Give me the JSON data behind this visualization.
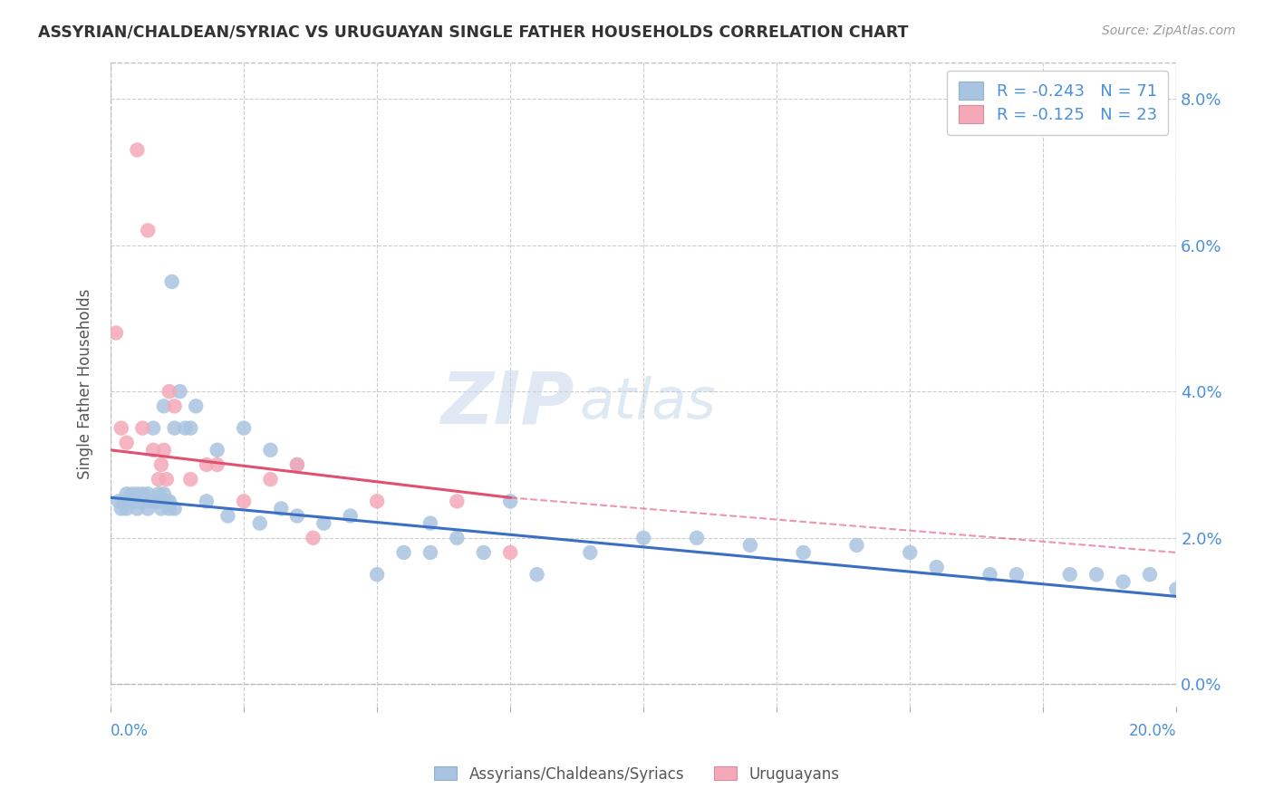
{
  "title": "ASSYRIAN/CHALDEAN/SYRIAC VS URUGUAYAN SINGLE FATHER HOUSEHOLDS CORRELATION CHART",
  "source": "Source: ZipAtlas.com",
  "ylabel": "Single Father Households",
  "ytick_labels": [
    "0.0%",
    "2.0%",
    "4.0%",
    "6.0%",
    "8.0%"
  ],
  "ytick_values": [
    0.0,
    2.0,
    4.0,
    6.0,
    8.0
  ],
  "xmin": 0.0,
  "xmax": 20.0,
  "ymin": -0.3,
  "ymax": 8.5,
  "legend_entry1": "R = -0.243   N = 71",
  "legend_entry2": "R = -0.125   N = 23",
  "color_blue": "#a8c4e0",
  "color_pink": "#f4a8b8",
  "color_blue_line": "#3a6fc4",
  "color_pink_line": "#e05070",
  "color_text": "#4a90d9",
  "blue_line_x0": 0.0,
  "blue_line_y0": 2.55,
  "blue_line_x1": 20.0,
  "blue_line_y1": 1.2,
  "pink_solid_x0": 0.0,
  "pink_solid_y0": 3.2,
  "pink_solid_x1": 7.5,
  "pink_solid_y1": 2.55,
  "pink_dash_x0": 7.5,
  "pink_dash_y0": 2.55,
  "pink_dash_x1": 20.0,
  "pink_dash_y1": 1.8,
  "blue_scatter_x": [
    0.15,
    0.2,
    0.25,
    0.3,
    0.3,
    0.35,
    0.4,
    0.4,
    0.45,
    0.5,
    0.5,
    0.5,
    0.55,
    0.6,
    0.6,
    0.65,
    0.7,
    0.7,
    0.75,
    0.8,
    0.85,
    0.9,
    0.9,
    0.95,
    1.0,
    1.0,
    1.0,
    1.05,
    1.1,
    1.1,
    1.15,
    1.2,
    1.2,
    1.3,
    1.4,
    1.5,
    1.6,
    1.8,
    2.0,
    2.2,
    2.5,
    2.8,
    3.0,
    3.2,
    3.5,
    3.5,
    4.0,
    4.5,
    5.0,
    5.5,
    6.0,
    6.0,
    6.5,
    7.0,
    7.5,
    8.0,
    9.0,
    10.0,
    11.0,
    12.0,
    13.0,
    14.0,
    15.0,
    15.5,
    16.5,
    17.0,
    18.0,
    18.5,
    19.0,
    19.5,
    20.0
  ],
  "blue_scatter_y": [
    2.5,
    2.4,
    2.5,
    2.6,
    2.4,
    2.5,
    2.5,
    2.6,
    2.5,
    2.5,
    2.4,
    2.6,
    2.5,
    2.5,
    2.6,
    2.5,
    2.6,
    2.4,
    2.5,
    3.5,
    2.5,
    2.5,
    2.6,
    2.4,
    2.5,
    2.6,
    3.8,
    2.5,
    2.5,
    2.4,
    5.5,
    2.4,
    3.5,
    4.0,
    3.5,
    3.5,
    3.8,
    2.5,
    3.2,
    2.3,
    3.5,
    2.2,
    3.2,
    2.4,
    2.3,
    3.0,
    2.2,
    2.3,
    1.5,
    1.8,
    2.2,
    1.8,
    2.0,
    1.8,
    2.5,
    1.5,
    1.8,
    2.0,
    2.0,
    1.9,
    1.8,
    1.9,
    1.8,
    1.6,
    1.5,
    1.5,
    1.5,
    1.5,
    1.4,
    1.5,
    1.3
  ],
  "pink_scatter_x": [
    0.1,
    0.2,
    0.3,
    0.5,
    0.6,
    0.7,
    0.8,
    0.9,
    0.95,
    1.0,
    1.05,
    1.1,
    1.2,
    1.5,
    1.8,
    2.0,
    2.5,
    3.0,
    3.5,
    3.8,
    5.0,
    6.5,
    7.5
  ],
  "pink_scatter_y": [
    4.8,
    3.5,
    3.3,
    7.3,
    3.5,
    6.2,
    3.2,
    2.8,
    3.0,
    3.2,
    2.8,
    4.0,
    3.8,
    2.8,
    3.0,
    3.0,
    2.5,
    2.8,
    3.0,
    2.0,
    2.5,
    2.5,
    1.8
  ]
}
